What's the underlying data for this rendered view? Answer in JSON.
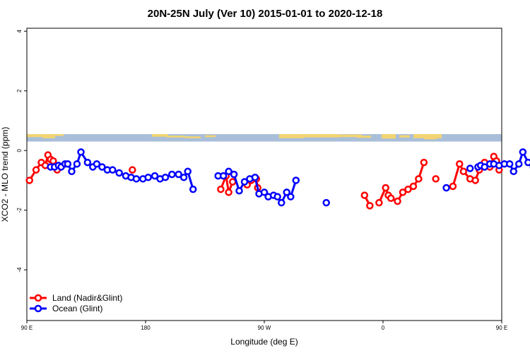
{
  "chart_data": {
    "type": "line",
    "title": "20N-25N July (Ver 10)   2015-01-01 to 2020-12-18",
    "xlabel": "Longitude (deg E)",
    "ylabel": "XCO2 - MLO trend (ppm)",
    "xlim": [
      90,
      450
    ],
    "ylim": [
      -5.7,
      4.1
    ],
    "x_ticks": [
      {
        "value": 90,
        "label": "90 E"
      },
      {
        "value": 180,
        "label": "180"
      },
      {
        "value": 270,
        "label": "90 W"
      },
      {
        "value": 360,
        "label": "0"
      },
      {
        "value": 450,
        "label": "90 E"
      },
      {
        "value": 540,
        "label": "180"
      }
    ],
    "y_ticks": [
      {
        "value": 4,
        "label": "4"
      },
      {
        "value": 2,
        "label": "2"
      },
      {
        "value": 0,
        "label": "0"
      },
      {
        "value": -2,
        "label": "-2"
      },
      {
        "value": -4,
        "label": "-4"
      }
    ],
    "map_band": {
      "ymin": 0.3,
      "ymax": 0.55,
      "ocean_color": "#a9bfd9",
      "land_color": "#f2d472"
    },
    "legend": {
      "placement": "bottom-left",
      "entries": [
        {
          "label": "Land (Nadir&Glint)",
          "color": "#ff0000"
        },
        {
          "label": "Ocean (Glint)",
          "color": "#0000ff"
        }
      ]
    },
    "series": [
      {
        "name": "Land (Nadir&Glint)",
        "color": "#ff0000",
        "segments": [
          [
            [
              92,
              -1.0
            ],
            [
              97,
              -0.65
            ],
            [
              101,
              -0.4
            ],
            [
              104,
              -0.5
            ],
            [
              106,
              -0.15
            ],
            [
              108,
              -0.3
            ],
            [
              110,
              -0.35
            ],
            [
              113,
              -0.65
            ]
          ],
          [
            [
              170,
              -0.65
            ]
          ],
          [
            [
              237,
              -1.3
            ],
            [
              241,
              -0.85
            ],
            [
              243,
              -1.4
            ],
            [
              246,
              -1.05
            ]
          ],
          [
            [
              257,
              -1.15
            ],
            [
              260,
              -1.0
            ],
            [
              264,
              -0.95
            ],
            [
              265,
              -1.25
            ]
          ],
          [
            [
              346,
              -1.5
            ],
            [
              350,
              -1.85
            ]
          ],
          [
            [
              357,
              -1.75
            ],
            [
              362,
              -1.25
            ],
            [
              364,
              -1.5
            ],
            [
              366,
              -1.6
            ],
            [
              371,
              -1.7
            ],
            [
              375,
              -1.4
            ],
            [
              379,
              -1.3
            ],
            [
              383,
              -1.2
            ],
            [
              387,
              -0.95
            ],
            [
              391,
              -0.4
            ]
          ],
          [
            [
              400,
              -0.95
            ]
          ],
          [
            [
              413,
              -1.2
            ],
            [
              418,
              -0.45
            ],
            [
              421,
              -0.7
            ],
            [
              426,
              -0.95
            ],
            [
              430,
              -1.0
            ],
            [
              433,
              -0.65
            ],
            [
              437,
              -0.4
            ],
            [
              441,
              -0.55
            ],
            [
              444,
              -0.2
            ],
            [
              446,
              -0.35
            ],
            [
              448,
              -0.65
            ]
          ]
        ]
      },
      {
        "name": "Ocean (Glint)",
        "color": "#0000ff",
        "segments": [
          [
            [
              108,
              -0.55
            ],
            [
              111,
              -0.55
            ],
            [
              114,
              -0.5
            ],
            [
              116,
              -0.55
            ],
            [
              119,
              -0.45
            ],
            [
              121,
              -0.45
            ],
            [
              124,
              -0.7
            ],
            [
              128,
              -0.45
            ],
            [
              131,
              -0.05
            ],
            [
              136,
              -0.4
            ],
            [
              140,
              -0.55
            ],
            [
              143,
              -0.45
            ],
            [
              147,
              -0.55
            ],
            [
              151,
              -0.65
            ],
            [
              155,
              -0.65
            ],
            [
              160,
              -0.75
            ],
            [
              165,
              -0.85
            ],
            [
              169,
              -0.9
            ],
            [
              173,
              -0.95
            ],
            [
              178,
              -0.95
            ],
            [
              182,
              -0.9
            ],
            [
              187,
              -0.85
            ],
            [
              191,
              -0.95
            ],
            [
              195,
              -0.9
            ],
            [
              200,
              -0.8
            ],
            [
              205,
              -0.8
            ],
            [
              209,
              -0.9
            ],
            [
              212,
              -0.7
            ],
            [
              216,
              -1.3
            ]
          ],
          [
            [
              235,
              -0.85
            ],
            [
              239,
              -0.85
            ],
            [
              243,
              -0.7
            ],
            [
              247,
              -0.8
            ],
            [
              251,
              -1.35
            ],
            [
              255,
              -1.05
            ],
            [
              259,
              -0.95
            ],
            [
              263,
              -0.9
            ],
            [
              266,
              -1.45
            ],
            [
              270,
              -1.4
            ],
            [
              273,
              -1.55
            ],
            [
              277,
              -1.5
            ],
            [
              280,
              -1.55
            ],
            [
              283,
              -1.75
            ],
            [
              287,
              -1.4
            ],
            [
              290,
              -1.55
            ],
            [
              294,
              -1.0
            ]
          ],
          [
            [
              317,
              -1.75
            ]
          ],
          [
            [
              408,
              -1.25
            ]
          ],
          [
            [
              426,
              -0.6
            ]
          ],
          [
            [
              432,
              -0.55
            ],
            [
              434,
              -0.5
            ],
            [
              437,
              -0.55
            ],
            [
              441,
              -0.45
            ],
            [
              444,
              -0.45
            ],
            [
              448,
              -0.5
            ],
            [
              452,
              -0.45
            ],
            [
              456,
              -0.45
            ],
            [
              459,
              -0.7
            ],
            [
              463,
              -0.45
            ],
            [
              466,
              -0.05
            ],
            [
              470,
              -0.4
            ],
            [
              474,
              -0.55
            ],
            [
              478,
              -0.45
            ],
            [
              482,
              -0.55
            ],
            [
              486,
              -0.65
            ],
            [
              490,
              -0.7
            ],
            [
              494,
              -0.7
            ]
          ]
        ]
      }
    ]
  }
}
